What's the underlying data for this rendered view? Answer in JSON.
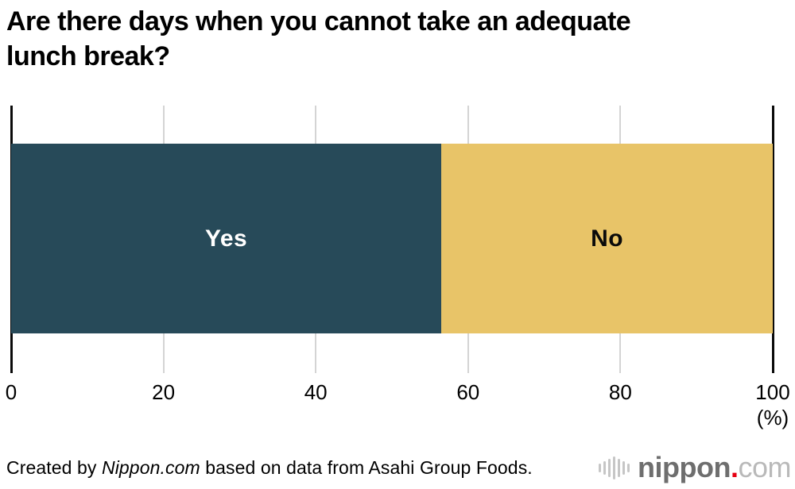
{
  "header": {
    "title_lines": {
      "0": "Are there days when you cannot take an adequate",
      "1": "lunch break?"
    }
  },
  "chart_data": {
    "type": "bar",
    "orientation": "horizontal",
    "stacked": true,
    "title": "Are there days when you cannot take an adequate lunch break?",
    "categories": [
      "Yes",
      "No"
    ],
    "values": [
      56.5,
      43.5
    ],
    "colors": [
      "#274a59",
      "#e8c468"
    ],
    "xlabel": "(%)",
    "xlim": [
      0,
      100
    ],
    "xticks": [
      0,
      20,
      40,
      60,
      80,
      100
    ],
    "grid": "vertical gridlines at 20/40/60/80, black edge lines at 0 and 100",
    "legend": "none (labels inside segments)"
  },
  "bar_labels": {
    "yes": "Yes",
    "no": "No"
  },
  "axis": {
    "ticks": {
      "0": "0",
      "1": "20",
      "2": "40",
      "3": "60",
      "4": "80",
      "5": "100"
    },
    "unit": "(%)"
  },
  "footer": {
    "credit_prefix": "Created by ",
    "credit_site": "Nippon.com",
    "credit_suffix": " based on data from Asahi Group Foods."
  },
  "logo": {
    "name": "nippon",
    "dot": ".",
    "tld": "com"
  },
  "colors": {
    "yes_bar": "#274a59",
    "no_bar": "#e8c468",
    "gridline": "#d4d4d4",
    "axis_line": "#0a0a0a",
    "logo_gray": "#6e6e6e",
    "logo_light_gray": "#b9b9b9",
    "logo_red": "#e60012"
  }
}
